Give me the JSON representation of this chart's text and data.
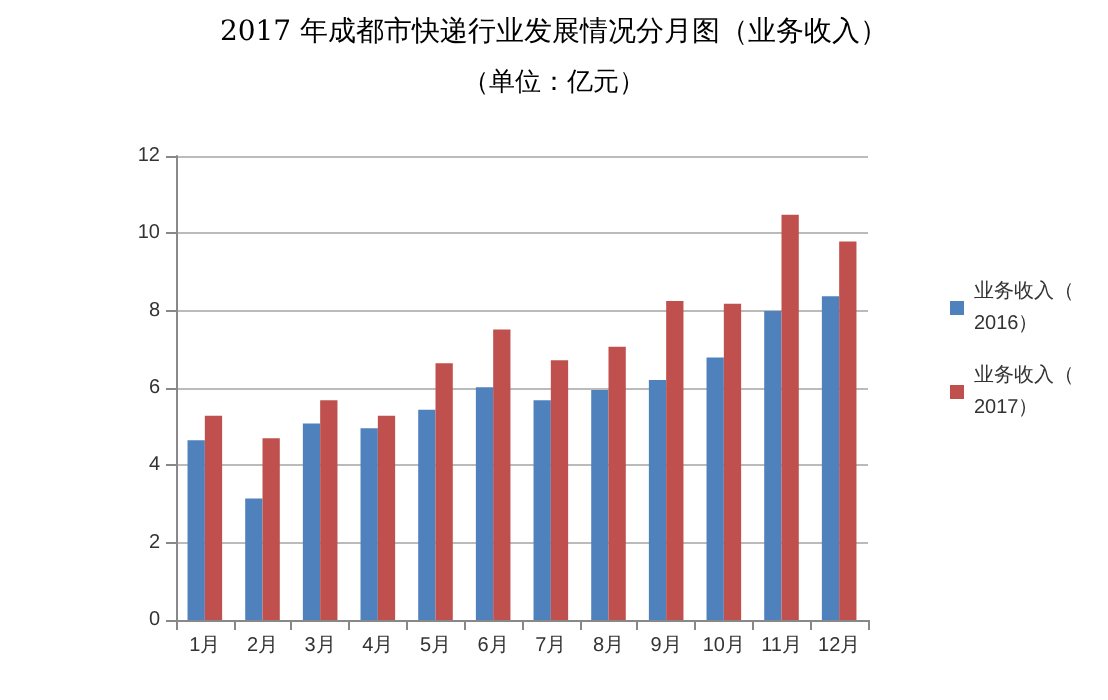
{
  "chart_data": {
    "type": "bar",
    "title": "2017 年成都市快递行业发展情况分月图（业务收入）",
    "subtitle": "（单位：亿元）",
    "categories": [
      "1月",
      "2月",
      "3月",
      "4月",
      "5月",
      "6月",
      "7月",
      "8月",
      "9月",
      "10月",
      "11月",
      "12月"
    ],
    "series": [
      {
        "name": "业务收入（2016）",
        "color": "#4f81bd",
        "values": [
          4.65,
          3.14,
          5.08,
          4.96,
          5.44,
          6.02,
          5.68,
          5.95,
          6.21,
          6.79,
          7.99,
          8.37
        ]
      },
      {
        "name": "业务收入（2017）",
        "color": "#c0504d",
        "values": [
          5.28,
          4.7,
          5.68,
          5.28,
          6.64,
          7.51,
          6.72,
          7.07,
          8.25,
          8.18,
          10.48,
          9.79
        ]
      }
    ],
    "ylim": [
      0,
      12
    ],
    "yticks": [
      0,
      2,
      4,
      6,
      8,
      10,
      12
    ],
    "grid": "y",
    "legend": "right"
  }
}
